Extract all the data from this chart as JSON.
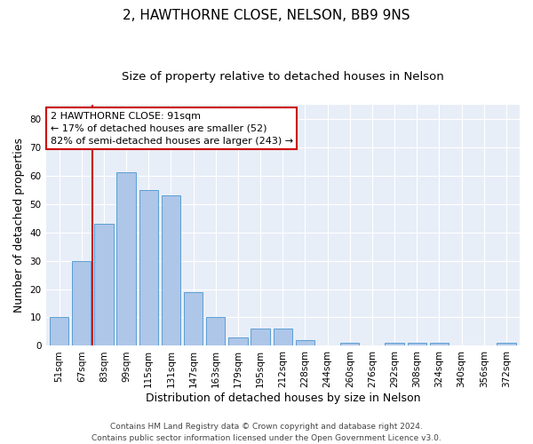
{
  "title1": "2, HAWTHORNE CLOSE, NELSON, BB9 9NS",
  "title2": "Size of property relative to detached houses in Nelson",
  "xlabel": "Distribution of detached houses by size in Nelson",
  "ylabel": "Number of detached properties",
  "bar_labels": [
    "51sqm",
    "67sqm",
    "83sqm",
    "99sqm",
    "115sqm",
    "131sqm",
    "147sqm",
    "163sqm",
    "179sqm",
    "195sqm",
    "212sqm",
    "228sqm",
    "244sqm",
    "260sqm",
    "276sqm",
    "292sqm",
    "308sqm",
    "324sqm",
    "340sqm",
    "356sqm",
    "372sqm"
  ],
  "bar_values": [
    10,
    30,
    43,
    61,
    55,
    53,
    19,
    10,
    3,
    6,
    6,
    2,
    0,
    1,
    0,
    1,
    1,
    1,
    0,
    0,
    1
  ],
  "bar_color": "#aec6e8",
  "bar_edge_color": "#5a9fd4",
  "annotation_line1": "2 HAWTHORNE CLOSE: 91sqm",
  "annotation_line2": "← 17% of detached houses are smaller (52)",
  "annotation_line3": "82% of semi-detached houses are larger (243) →",
  "annotation_box_color": "#ffffff",
  "annotation_box_edge_color": "#cc0000",
  "vline_color": "#cc0000",
  "vline_x_index": 1.5,
  "ylim": [
    0,
    85
  ],
  "yticks": [
    0,
    10,
    20,
    30,
    40,
    50,
    60,
    70,
    80
  ],
  "background_color": "#e8eef8",
  "grid_color": "#ffffff",
  "footer": "Contains HM Land Registry data © Crown copyright and database right 2024.\nContains public sector information licensed under the Open Government Licence v3.0.",
  "title1_fontsize": 11,
  "title2_fontsize": 9.5,
  "xlabel_fontsize": 9,
  "ylabel_fontsize": 9,
  "tick_fontsize": 7.5,
  "footer_fontsize": 6.5,
  "annot_fontsize": 8
}
